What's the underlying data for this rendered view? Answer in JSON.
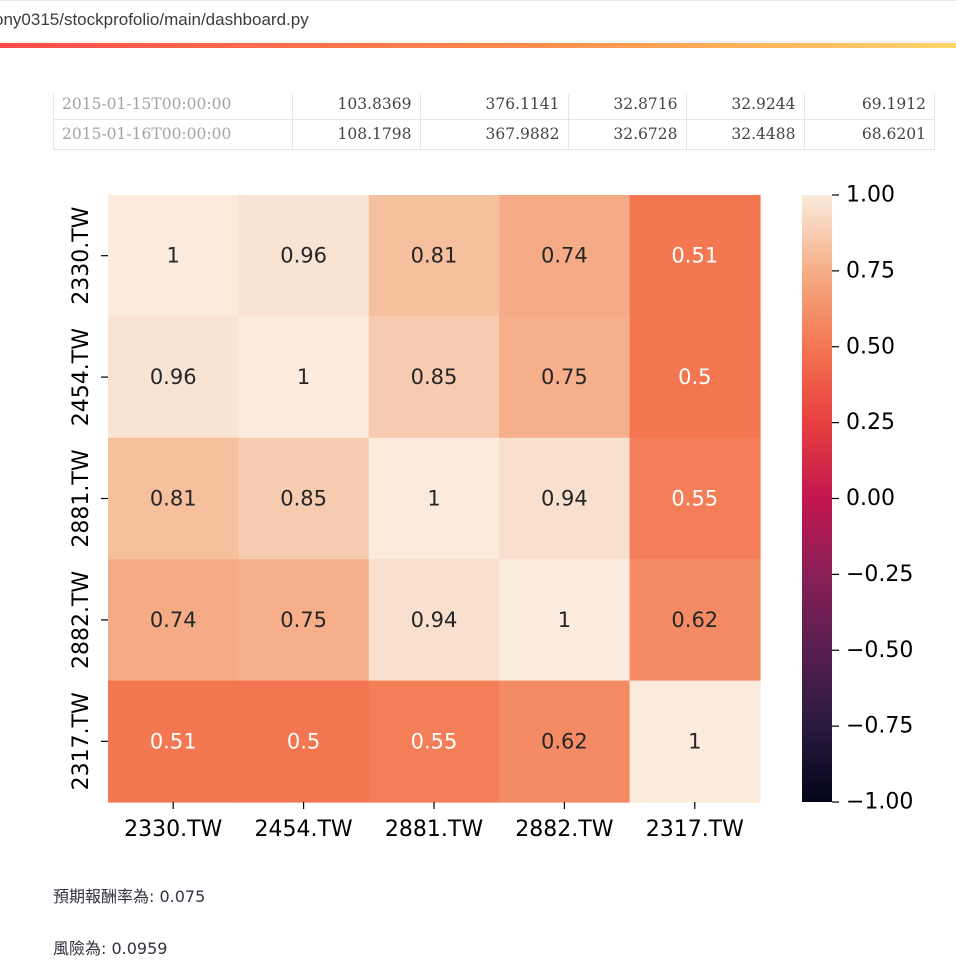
{
  "browser": {
    "url": "ony0315/stockprofolio/main/dashboard.py"
  },
  "dataframe": {
    "rows": [
      {
        "index": "2015-01-15T00:00:00",
        "values": [
          "103.8369",
          "376.1141",
          "32.8716",
          "32.9244",
          "69.1912"
        ]
      },
      {
        "index": "2015-01-16T00:00:00",
        "values": [
          "108.1798",
          "367.9882",
          "32.6728",
          "32.4488",
          "68.6201"
        ]
      }
    ]
  },
  "chart_data": {
    "type": "heatmap",
    "title": "",
    "xlabel": "",
    "ylabel": "",
    "x_labels": [
      "2330.TW",
      "2454.TW",
      "2881.TW",
      "2882.TW",
      "2317.TW"
    ],
    "y_labels": [
      "2330.TW",
      "2454.TW",
      "2881.TW",
      "2882.TW",
      "2317.TW"
    ],
    "values": [
      [
        1,
        0.96,
        0.81,
        0.74,
        0.51
      ],
      [
        0.96,
        1,
        0.85,
        0.75,
        0.5
      ],
      [
        0.81,
        0.85,
        1,
        0.94,
        0.55
      ],
      [
        0.74,
        0.75,
        0.94,
        1,
        0.62
      ],
      [
        0.51,
        0.5,
        0.55,
        0.62,
        1
      ]
    ],
    "cell_labels": [
      [
        "1",
        "0.96",
        "0.81",
        "0.74",
        "0.51"
      ],
      [
        "0.96",
        "1",
        "0.85",
        "0.75",
        "0.5"
      ],
      [
        "0.81",
        "0.85",
        "1",
        "0.94",
        "0.55"
      ],
      [
        "0.74",
        "0.75",
        "0.94",
        "1",
        "0.62"
      ],
      [
        "0.51",
        "0.5",
        "0.55",
        "0.62",
        "1"
      ]
    ],
    "colormap": "rocket",
    "vmin": -1,
    "vmax": 1,
    "colorbar_ticks": [
      1.0,
      0.75,
      0.5,
      0.25,
      0.0,
      -0.25,
      -0.5,
      -0.75,
      -1.0
    ],
    "colorbar_tick_labels": [
      "1.00",
      "0.75",
      "0.50",
      "0.25",
      "0.00",
      "−0.25",
      "−0.50",
      "−0.75",
      "−1.00"
    ],
    "legend_position": "right"
  },
  "results": {
    "expected_return_text": "預期報酬率為: 0.075",
    "risk_text": "風險為: 0.0959"
  }
}
